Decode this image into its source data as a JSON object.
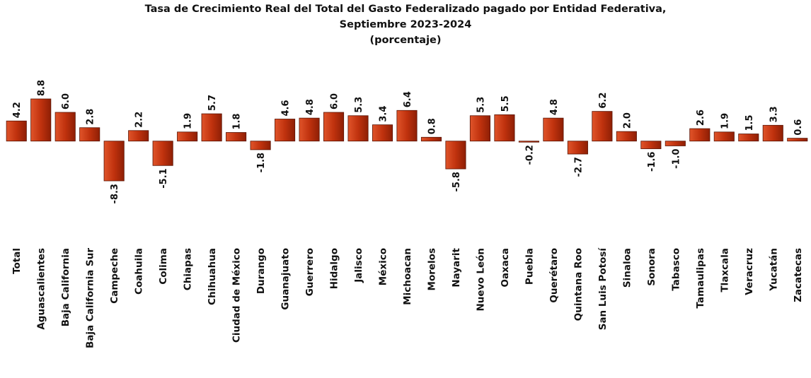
{
  "chart_data": {
    "type": "bar",
    "title": [
      "Tasa de Crecimiento Real del Total del Gasto Federalizado pagado por Entidad Federativa,",
      "Septiembre 2023-2024",
      "(porcentaje)"
    ],
    "categories": [
      "Total",
      "Aguascalientes",
      "Baja California",
      "Baja California Sur",
      "Campeche",
      "Coahuila",
      "Colima",
      "Chiapas",
      "Chihuahua",
      "Ciudad de México",
      "Durango",
      "Guanajuato",
      "Guerrero",
      "Hidalgo",
      "Jalisco",
      "México",
      "Michoacan",
      "Morelos",
      "Nayarit",
      "Nuevo León",
      "Oaxaca",
      "Puebla",
      "Querétaro",
      "Quintana Roo",
      "San Luis Potosí",
      "Sinaloa",
      "Sonora",
      "Tabasco",
      "Tamaulipas",
      "Tlaxcala",
      "Veracruz",
      "Yucatán",
      "Zacatecas"
    ],
    "values": [
      4.2,
      8.8,
      6.0,
      2.8,
      -8.3,
      2.2,
      -5.1,
      1.9,
      5.7,
      1.8,
      -1.8,
      4.6,
      4.8,
      6.0,
      5.3,
      3.4,
      6.4,
      0.8,
      -5.8,
      5.3,
      5.5,
      -0.2,
      4.8,
      -2.7,
      6.2,
      2.0,
      -1.6,
      -1.0,
      2.6,
      1.9,
      1.5,
      3.3,
      0.6
    ],
    "value_labels": [
      "4.2",
      "8.8",
      "6.0",
      "2.8",
      "-8.3",
      "2.2",
      "-5.1",
      "1.9",
      "5.7",
      "1.8",
      "-1.8",
      "4.6",
      "4.8",
      "6.0",
      "5.3",
      "3.4",
      "6.4",
      "0.8",
      "-5.8",
      "5.3",
      "5.5",
      "-0.2",
      "4.8",
      "-2.7",
      "6.2",
      "2.0",
      "-1.6",
      "-1.0",
      "2.6",
      "1.9",
      "1.5",
      "3.3",
      "0.6"
    ],
    "color": "#c0320e"
  }
}
